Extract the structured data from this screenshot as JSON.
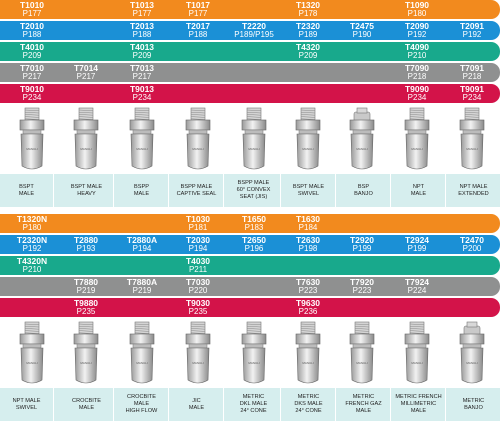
{
  "colors": {
    "orange": "#f28a1e",
    "blue": "#1b90d6",
    "green": "#18a98c",
    "gray": "#8f9090",
    "crimson": "#d31349",
    "label_bg": "#d6eeee"
  },
  "top": {
    "bands": [
      {
        "color": "orange",
        "cells": [
          {
            "col": 0,
            "code": "T1010",
            "part": "P177"
          },
          {
            "col": 2,
            "code": "T1013",
            "part": "P177"
          },
          {
            "col": 3,
            "code": "T1017",
            "part": "P177"
          },
          {
            "col": 5,
            "code": "T1320",
            "part": "P178"
          },
          {
            "col": 7,
            "code": "T1090",
            "part": "P180"
          }
        ]
      },
      {
        "color": "blue",
        "cells": [
          {
            "col": 0,
            "code": "T2010",
            "part": "P188"
          },
          {
            "col": 2,
            "code": "T2013",
            "part": "P188"
          },
          {
            "col": 3,
            "code": "T2017",
            "part": "P188"
          },
          {
            "col": 4,
            "code": "T2220",
            "part": "P189/P195"
          },
          {
            "col": 5,
            "code": "T2320",
            "part": "P189"
          },
          {
            "col": 6,
            "code": "T2475",
            "part": "P190"
          },
          {
            "col": 7,
            "code": "T2090",
            "part": "P192"
          },
          {
            "col": 8,
            "code": "T2091",
            "part": "P192"
          }
        ]
      },
      {
        "color": "green",
        "cells": [
          {
            "col": 0,
            "code": "T4010",
            "part": "P209"
          },
          {
            "col": 2,
            "code": "T4013",
            "part": "P209"
          },
          {
            "col": 5,
            "code": "T4320",
            "part": "P209"
          },
          {
            "col": 7,
            "code": "T4090",
            "part": "P210"
          }
        ]
      },
      {
        "color": "gray",
        "cells": [
          {
            "col": 0,
            "code": "T7010",
            "part": "P217"
          },
          {
            "col": 1,
            "code": "T7014",
            "part": "P217"
          },
          {
            "col": 2,
            "code": "T7013",
            "part": "P217"
          },
          {
            "col": 7,
            "code": "T7090",
            "part": "P218"
          },
          {
            "col": 8,
            "code": "T7091",
            "part": "P218"
          }
        ]
      },
      {
        "color": "crimson",
        "cells": [
          {
            "col": 0,
            "code": "T9010",
            "part": "P234"
          },
          {
            "col": 2,
            "code": "T9013",
            "part": "P234"
          },
          {
            "col": 7,
            "code": "T9090",
            "part": "P234"
          },
          {
            "col": 8,
            "code": "T9091",
            "part": "P234"
          }
        ]
      }
    ],
    "labels": [
      "BSPT\nMALE",
      "BSPT MALE\nHEAVY",
      "BSPP\nMALE",
      "BSPP MALE\nCAPTIVE SEAL",
      "BSPP MALE\n60° CONVEX\nSEAT (JIS)",
      "BSPT MALE\nSWIVEL",
      "BSP\nBANJO",
      "NPT\nMALE",
      "NPT MALE\nEXTENDED"
    ]
  },
  "bottom": {
    "bands": [
      {
        "color": "orange",
        "cells": [
          {
            "col": 0,
            "code": "T1320N",
            "part": "P180"
          },
          {
            "col": 3,
            "code": "T1030",
            "part": "P181"
          },
          {
            "col": 4,
            "code": "T1650",
            "part": "P183"
          },
          {
            "col": 5,
            "code": "T1630",
            "part": "P184"
          }
        ]
      },
      {
        "color": "blue",
        "cells": [
          {
            "col": 0,
            "code": "T2320N",
            "part": "P192"
          },
          {
            "col": 1,
            "code": "T2880",
            "part": "P193"
          },
          {
            "col": 2,
            "code": "T2880A",
            "part": "P194"
          },
          {
            "col": 3,
            "code": "T2030",
            "part": "P194"
          },
          {
            "col": 4,
            "code": "T2650",
            "part": "P196"
          },
          {
            "col": 5,
            "code": "T2630",
            "part": "P198"
          },
          {
            "col": 6,
            "code": "T2920",
            "part": "P199"
          },
          {
            "col": 7,
            "code": "T2924",
            "part": "P199"
          },
          {
            "col": 8,
            "code": "T2470",
            "part": "P200"
          }
        ]
      },
      {
        "color": "green",
        "cells": [
          {
            "col": 0,
            "code": "T4320N",
            "part": "P210"
          },
          {
            "col": 3,
            "code": "T4030",
            "part": "P211"
          }
        ]
      },
      {
        "color": "gray",
        "cells": [
          {
            "col": 1,
            "code": "T7880",
            "part": "P219"
          },
          {
            "col": 2,
            "code": "T7880A",
            "part": "P219"
          },
          {
            "col": 3,
            "code": "T7030",
            "part": "P220"
          },
          {
            "col": 5,
            "code": "T7630",
            "part": "P223"
          },
          {
            "col": 6,
            "code": "T7920",
            "part": "P223"
          },
          {
            "col": 7,
            "code": "T7924",
            "part": "P224"
          }
        ]
      },
      {
        "color": "crimson",
        "cells": [
          {
            "col": 1,
            "code": "T9880",
            "part": "P235"
          },
          {
            "col": 3,
            "code": "T9030",
            "part": "P235"
          },
          {
            "col": 5,
            "code": "T9630",
            "part": "P236"
          }
        ]
      }
    ],
    "labels": [
      "NPT MALE\nSWIVEL",
      "CROCBITE\nMALE",
      "CROCBITE\nMALE\nHIGH FLOW",
      "JIC\nMALE",
      "METRIC\nDKL MALE\n24° CONE",
      "METRIC\nDKS MALE\n24° CONE",
      "METRIC\nFRENCH GAZ\nMALE",
      "METRIC FRENCH\nMILLIMETRIC\nMALE",
      "METRIC\nBANJO"
    ]
  },
  "fitting_icons": {
    "top": [
      "bspt-male-fitting-icon",
      "bspt-male-heavy-fitting-icon",
      "bspp-male-fitting-icon",
      "bspp-captive-seal-fitting-icon",
      "bspp-convex-seat-fitting-icon",
      "bspt-swivel-fitting-icon",
      "bsp-banjo-fitting-icon",
      "npt-male-fitting-icon",
      "npt-extended-fitting-icon"
    ],
    "bottom": [
      "npt-swivel-fitting-icon",
      "crocbite-male-fitting-icon",
      "crocbite-high-flow-fitting-icon",
      "jic-male-fitting-icon",
      "dkl-male-fitting-icon",
      "dks-male-fitting-icon",
      "french-gaz-fitting-icon",
      "french-millimetric-fitting-icon",
      "metric-banjo-fitting-icon"
    ]
  }
}
